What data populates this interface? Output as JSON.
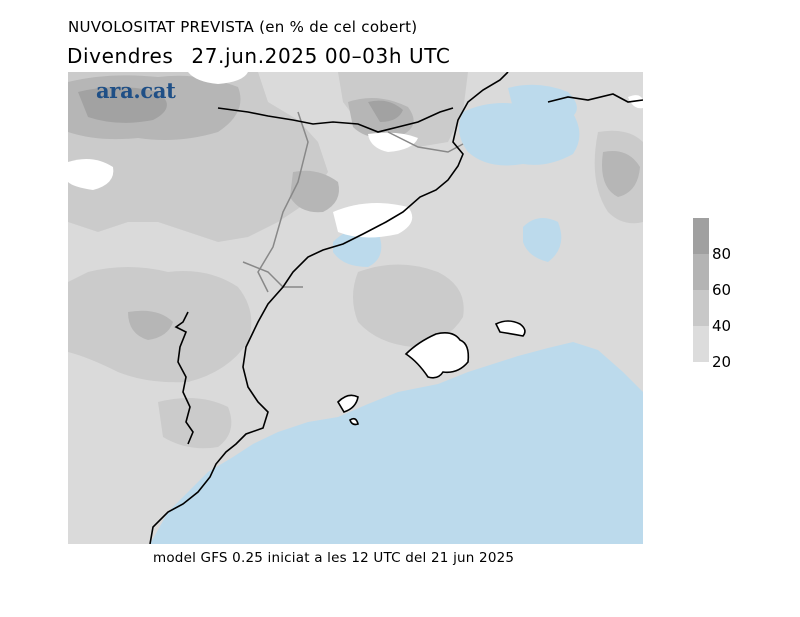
{
  "header": {
    "title": "NUVOLOSITAT PREVISTA (en % de cel cobert)",
    "day": "Divendres",
    "date_range": "27.jun.2025 00–03h UTC"
  },
  "brand": {
    "logo_text": "ara.cat"
  },
  "footer": {
    "model_info": "model GFS 0.25 iniciat a les 12 UTC del 21 jun 2025"
  },
  "legend": {
    "labels": [
      "80",
      "60",
      "40",
      "20"
    ],
    "colors": [
      "#a0a0a0",
      "#b4b4b4",
      "#c8c8c8",
      "#dcdcdc"
    ]
  },
  "map_colors": {
    "sea": "#bcdaec",
    "cloud_20_40": "#dadada",
    "cloud_40_60": "#cbcbcb",
    "cloud_60_80": "#b6b6b6",
    "cloud_80_100": "#a2a2a2",
    "clear_land": "#ffffff",
    "coastline": "#000000",
    "border": "#888888"
  }
}
